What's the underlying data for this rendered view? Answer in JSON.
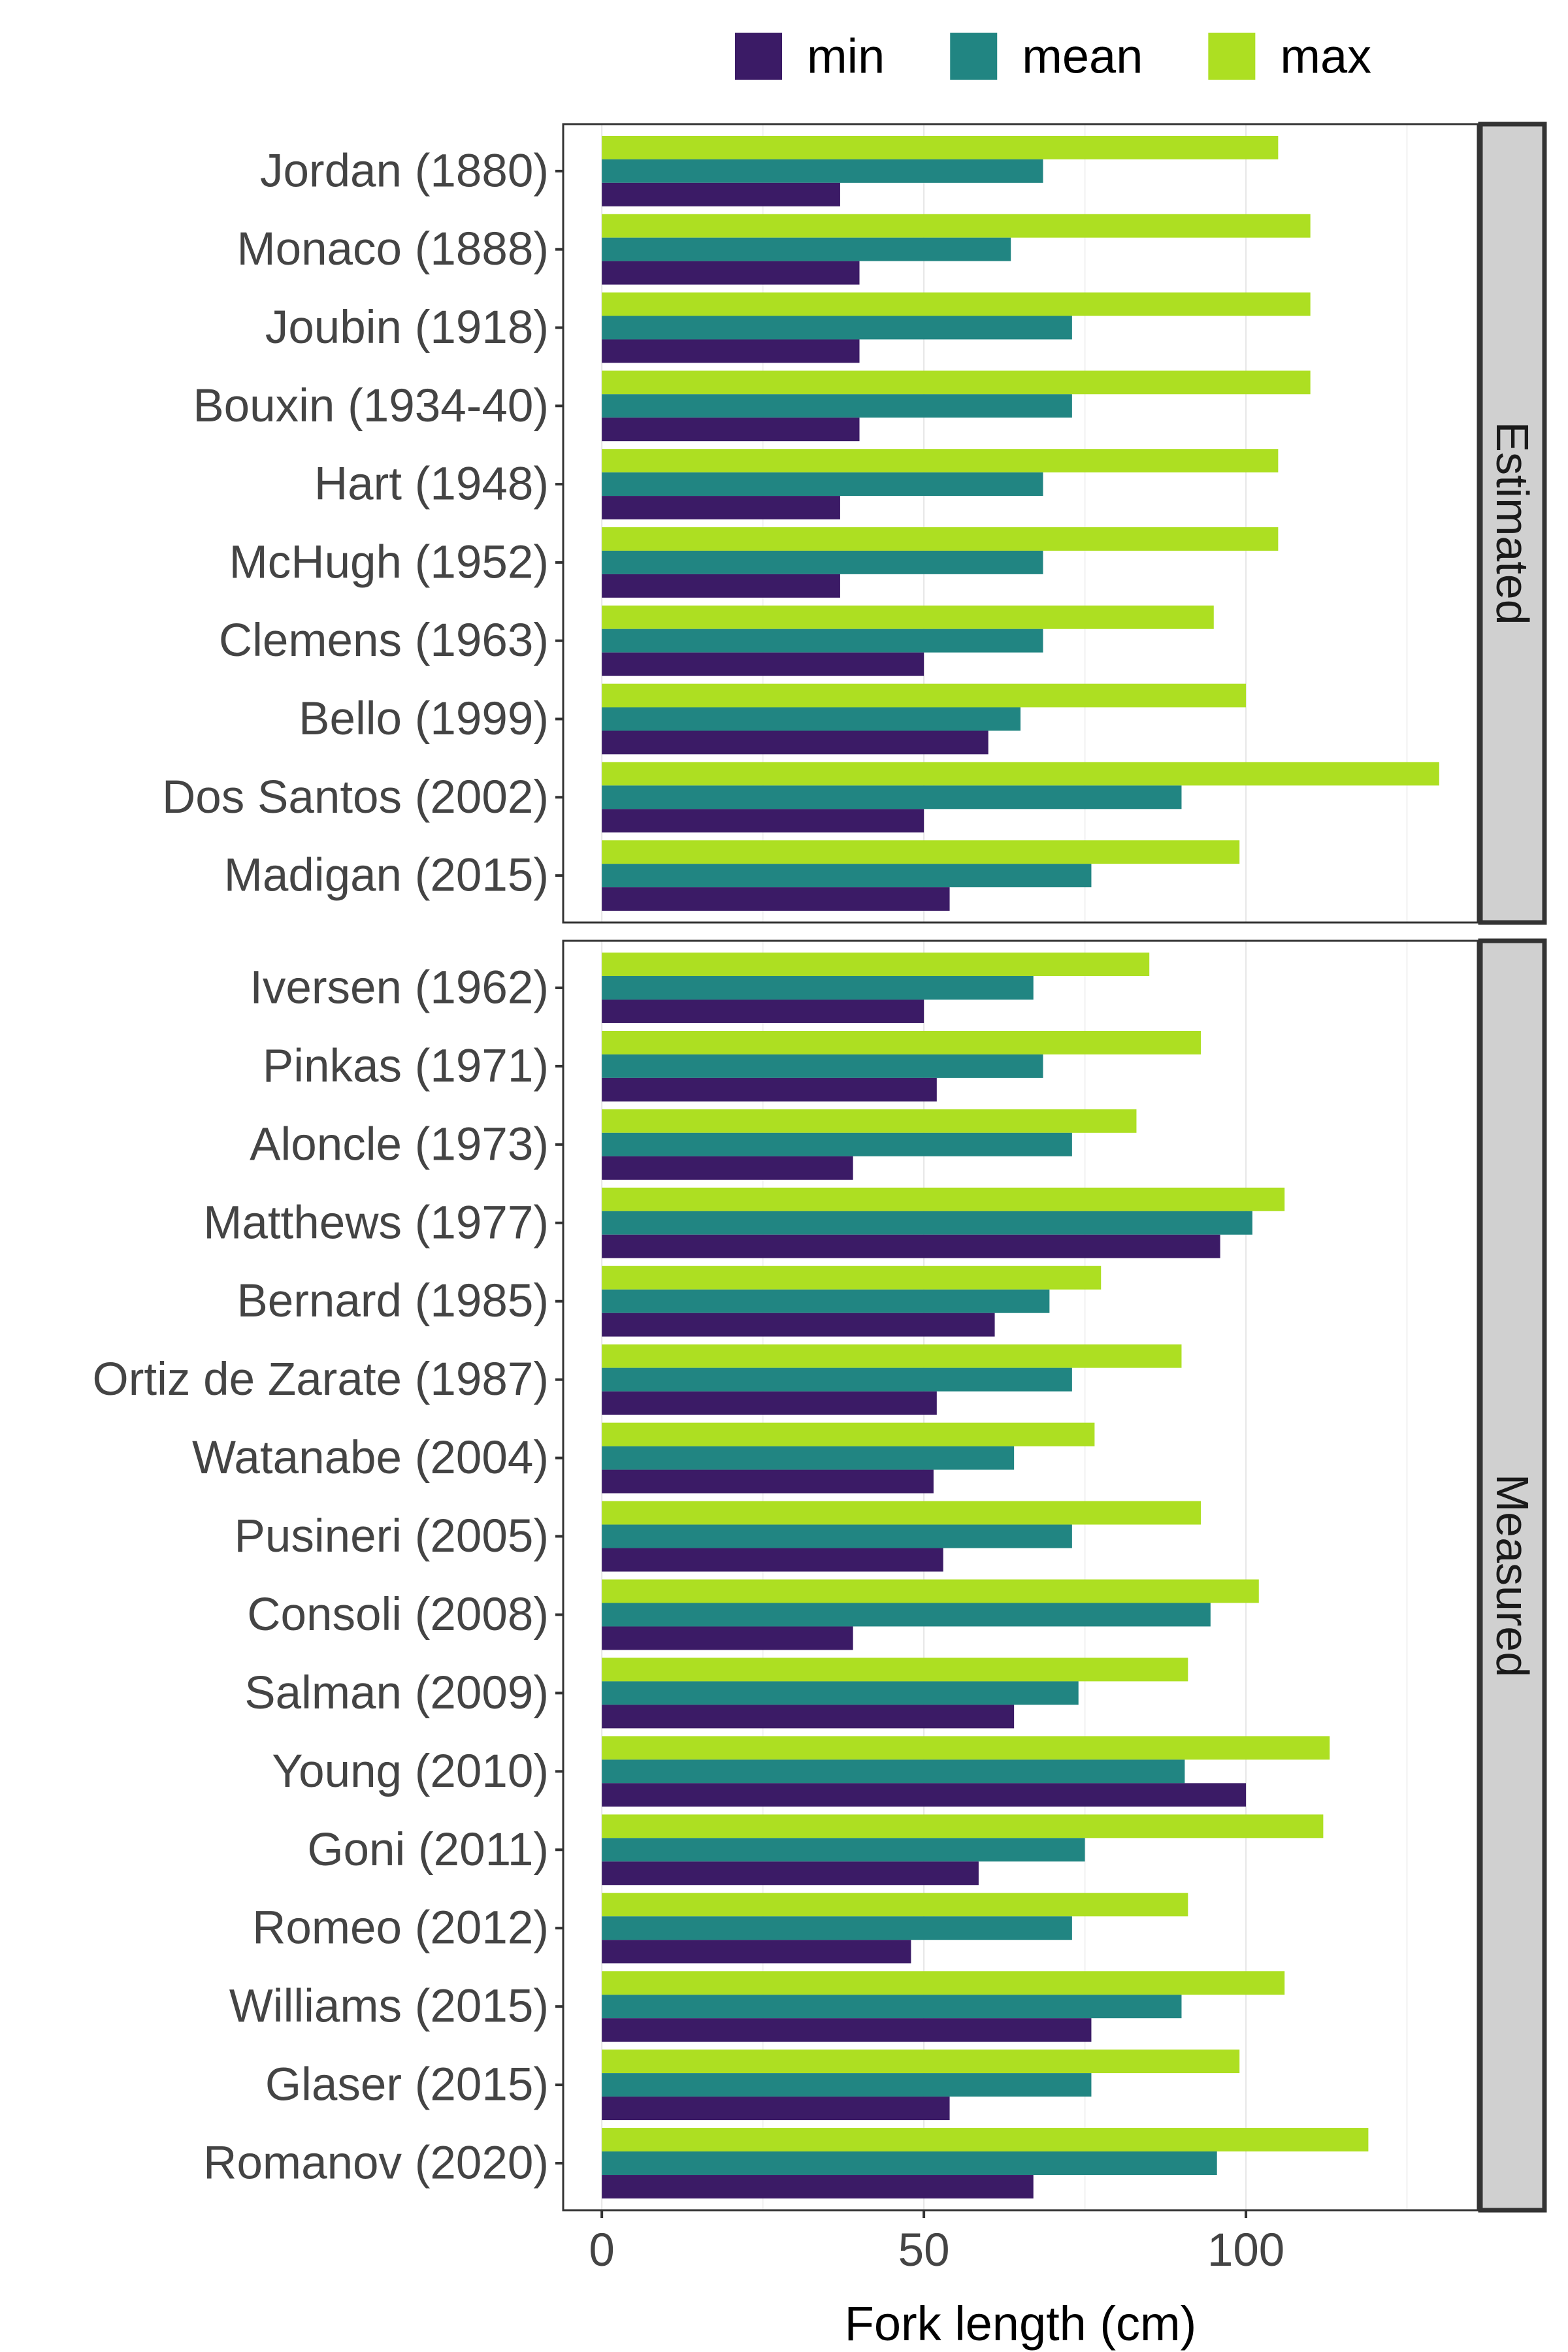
{
  "chart_data": {
    "type": "bar",
    "orientation": "horizontal",
    "xlabel": "Fork length (cm)",
    "xlim": [
      -6,
      136
    ],
    "xticks": [
      0,
      50,
      100
    ],
    "grid": true,
    "legend_position": "top",
    "series": [
      {
        "name": "min",
        "color": "#3b1b66"
      },
      {
        "name": "mean",
        "color": "#218582"
      },
      {
        "name": "max",
        "color": "#addf22"
      }
    ],
    "panels": [
      {
        "label": "Estimated",
        "categories": [
          "Jordan (1880)",
          "Monaco (1888)",
          "Joubin (1918)",
          "Bouxin (1934-40)",
          "Hart (1948)",
          "McHugh (1952)",
          "Clemens (1963)",
          "Bello (1999)",
          "Dos Santos (2002)",
          "Madigan (2015)"
        ],
        "min": [
          37,
          40,
          40,
          40,
          37,
          37,
          50,
          60,
          50,
          54
        ],
        "mean": [
          68.5,
          63.5,
          73,
          73,
          68.5,
          68.5,
          68.5,
          65,
          90,
          76
        ],
        "max": [
          105,
          110,
          110,
          110,
          105,
          105,
          95,
          100,
          130,
          99
        ]
      },
      {
        "label": "Measured",
        "categories": [
          "Iversen (1962)",
          "Pinkas (1971)",
          "Aloncle (1973)",
          "Matthews (1977)",
          "Bernard (1985)",
          "Ortiz de Zarate (1987)",
          "Watanabe (2004)",
          "Pusineri (2005)",
          "Consoli (2008)",
          "Salman (2009)",
          "Young (2010)",
          "Goni (2011)",
          "Romeo (2012)",
          "Williams (2015)",
          "Glaser (2015)",
          "Romanov (2020)"
        ],
        "min": [
          50,
          52,
          39,
          96,
          61,
          52,
          51.5,
          53,
          39,
          64,
          100,
          58.5,
          48,
          76,
          54,
          67
        ],
        "mean": [
          67,
          68.5,
          73,
          101,
          69.5,
          73,
          64,
          73,
          94.5,
          74,
          90.5,
          75,
          73,
          90,
          76,
          95.5
        ],
        "max": [
          85,
          93,
          83,
          106,
          77.5,
          90,
          76.5,
          93,
          102,
          91,
          113,
          112,
          91,
          106,
          99,
          119
        ]
      }
    ]
  }
}
